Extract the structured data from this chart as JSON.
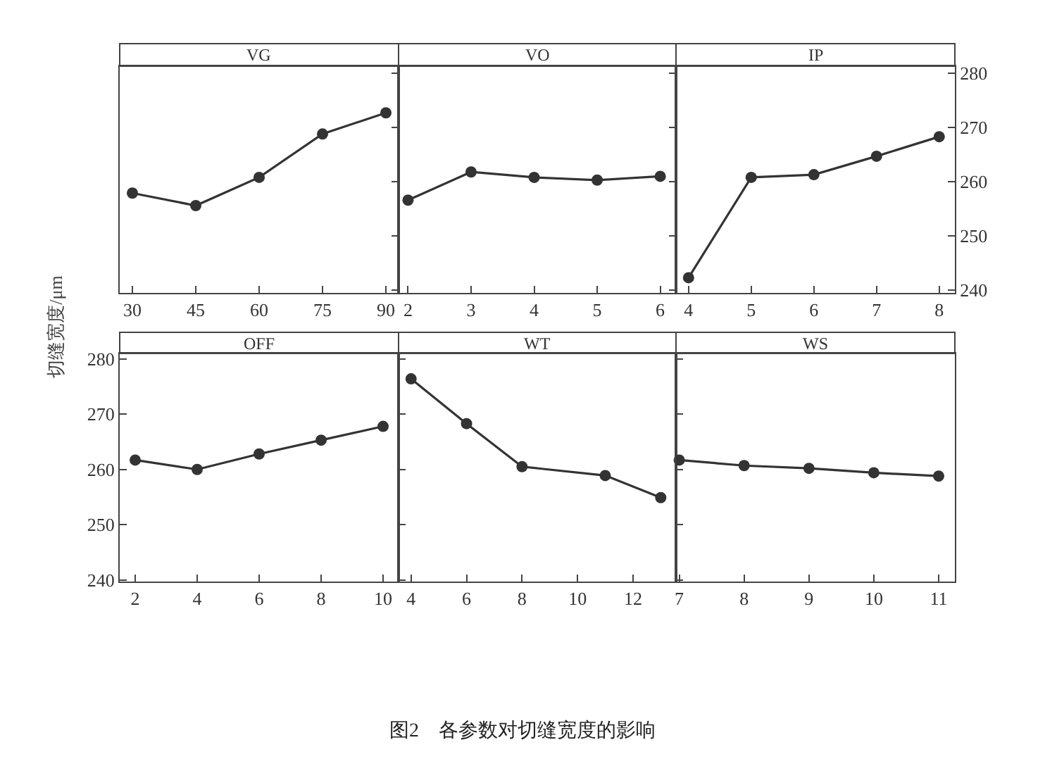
{
  "chart_data": [
    {
      "type": "line",
      "title": "VG",
      "x": [
        30,
        45,
        60,
        75,
        90
      ],
      "values": [
        257.9,
        255.6,
        260.8,
        268.8,
        272.7
      ],
      "color": "#333333",
      "marker": "circle",
      "line_style": "solid",
      "xlim": [
        27,
        93
      ],
      "xticks": [
        30,
        45,
        60,
        75,
        90
      ],
      "ylim": [
        239.5,
        281.3
      ],
      "yticks": [
        240,
        250,
        260,
        270,
        280
      ],
      "tick_labels": "x",
      "grid": false,
      "legend": false
    },
    {
      "type": "line",
      "title": "VO",
      "x": [
        2,
        3,
        4,
        5,
        6
      ],
      "values": [
        256.6,
        261.8,
        260.8,
        260.3,
        261
      ],
      "color": "#333333",
      "marker": "circle",
      "line_style": "solid",
      "xlim": [
        1.85,
        6.25
      ],
      "xticks": [
        2,
        3,
        4,
        5,
        6
      ],
      "ylim": [
        239.5,
        281.3
      ],
      "yticks": [
        240,
        250,
        260,
        270,
        280
      ],
      "tick_labels": "x",
      "grid": false,
      "legend": false
    },
    {
      "type": "line",
      "title": "IP",
      "x": [
        4,
        5,
        6,
        7,
        8
      ],
      "values": [
        242.3,
        260.8,
        261.3,
        264.7,
        268.3
      ],
      "color": "#333333",
      "marker": "circle",
      "line_style": "solid",
      "xlim": [
        3.8,
        8.25
      ],
      "xticks": [
        4,
        5,
        6,
        7,
        8
      ],
      "ylim": [
        239.5,
        281.3
      ],
      "yticks": [
        240,
        250,
        260,
        270,
        280
      ],
      "grid": false,
      "legend": false
    },
    {
      "type": "line",
      "title": "OFF",
      "ylabel": "切缝宽度/μm",
      "x": [
        2,
        4,
        6,
        8,
        10
      ],
      "values": [
        261.7,
        260,
        262.8,
        265.3,
        267.8
      ],
      "color": "#333333",
      "marker": "circle",
      "line_style": "solid",
      "xlim": [
        1.5,
        10.5
      ],
      "xticks": [
        2,
        4,
        6,
        8,
        10
      ],
      "ylim": [
        239.7,
        281
      ],
      "yticks": [
        240,
        250,
        260,
        270,
        280
      ],
      "grid": false,
      "legend": false
    },
    {
      "type": "line",
      "title": "WT",
      "x": [
        4,
        6,
        8,
        11,
        13
      ],
      "values": [
        276.4,
        268.3,
        260.5,
        258.9,
        254.9
      ],
      "color": "#333333",
      "marker": "circle",
      "line_style": "solid",
      "xlim": [
        3.55,
        13.55
      ],
      "xticks": [
        4,
        6,
        8,
        10,
        12
      ],
      "ylim": [
        239.7,
        281
      ],
      "yticks": [
        240,
        250,
        260,
        270,
        280
      ],
      "tick_labels": "x",
      "grid": false,
      "legend": false
    },
    {
      "type": "line",
      "title": "WS",
      "x": [
        7,
        8,
        9,
        10,
        11
      ],
      "values": [
        261.7,
        260.7,
        260.2,
        259.4,
        258.8
      ],
      "color": "#333333",
      "marker": "circle",
      "line_style": "solid",
      "xlim": [
        6.95,
        11.25
      ],
      "xticks": [
        7,
        8,
        9,
        10,
        11
      ],
      "ylim": [
        239.7,
        281
      ],
      "yticks": [
        240,
        250,
        260,
        270,
        280
      ],
      "tick_labels": "x",
      "grid": false,
      "legend": false,
      "annotations": [
        "图2　各参数对切缝宽度的影响"
      ]
    }
  ]
}
